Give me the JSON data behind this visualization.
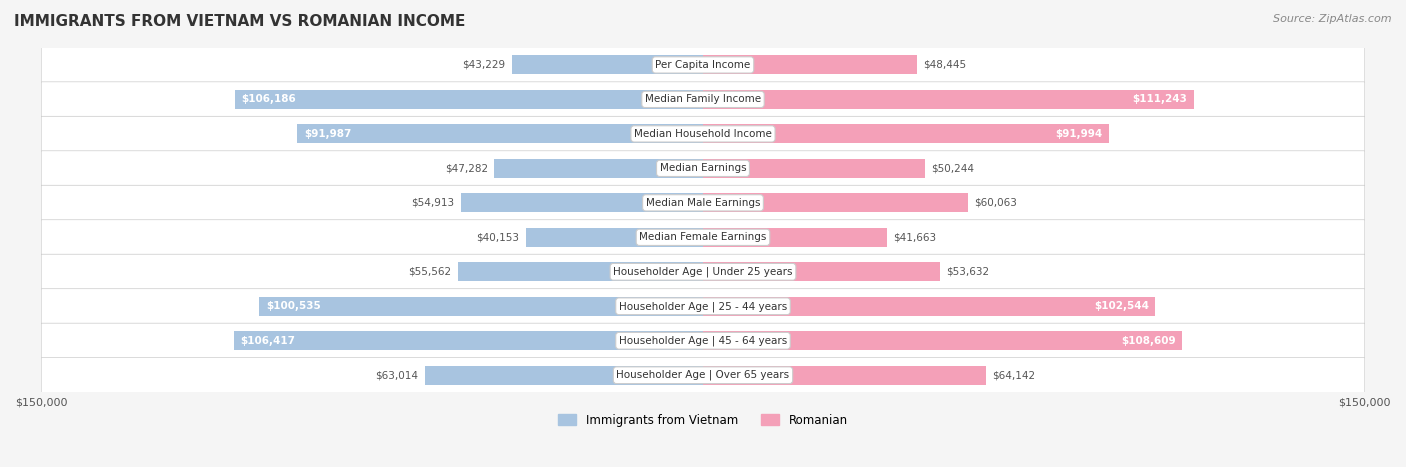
{
  "title": "IMMIGRANTS FROM VIETNAM VS ROMANIAN INCOME",
  "source": "Source: ZipAtlas.com",
  "categories": [
    "Per Capita Income",
    "Median Family Income",
    "Median Household Income",
    "Median Earnings",
    "Median Male Earnings",
    "Median Female Earnings",
    "Householder Age | Under 25 years",
    "Householder Age | 25 - 44 years",
    "Householder Age | 45 - 64 years",
    "Householder Age | Over 65 years"
  ],
  "vietnam_values": [
    43229,
    106186,
    91987,
    47282,
    54913,
    40153,
    55562,
    100535,
    106417,
    63014
  ],
  "romanian_values": [
    48445,
    111243,
    91994,
    50244,
    60063,
    41663,
    53632,
    102544,
    108609,
    64142
  ],
  "vietnam_labels": [
    "$43,229",
    "$106,186",
    "$91,987",
    "$47,282",
    "$54,913",
    "$40,153",
    "$55,562",
    "$100,535",
    "$106,417",
    "$63,014"
  ],
  "romanian_labels": [
    "$48,445",
    "$111,243",
    "$91,994",
    "$50,244",
    "$60,063",
    "$41,663",
    "$53,632",
    "$102,544",
    "$108,609",
    "$64,142"
  ],
  "vietnam_color": "#a8c4e0",
  "romanian_color": "#f4a0b8",
  "vietnam_label_color_inside": "#ffffff",
  "vietnam_label_color_outside": "#555555",
  "romanian_label_color_inside": "#ffffff",
  "romanian_label_color_outside": "#555555",
  "inside_threshold": 70000,
  "max_val": 150000,
  "legend_vietnam": "Immigrants from Vietnam",
  "legend_romanian": "Romanian",
  "background_color": "#f5f5f5",
  "row_background": "#ffffff",
  "bar_height": 0.55,
  "xlim": 150000
}
